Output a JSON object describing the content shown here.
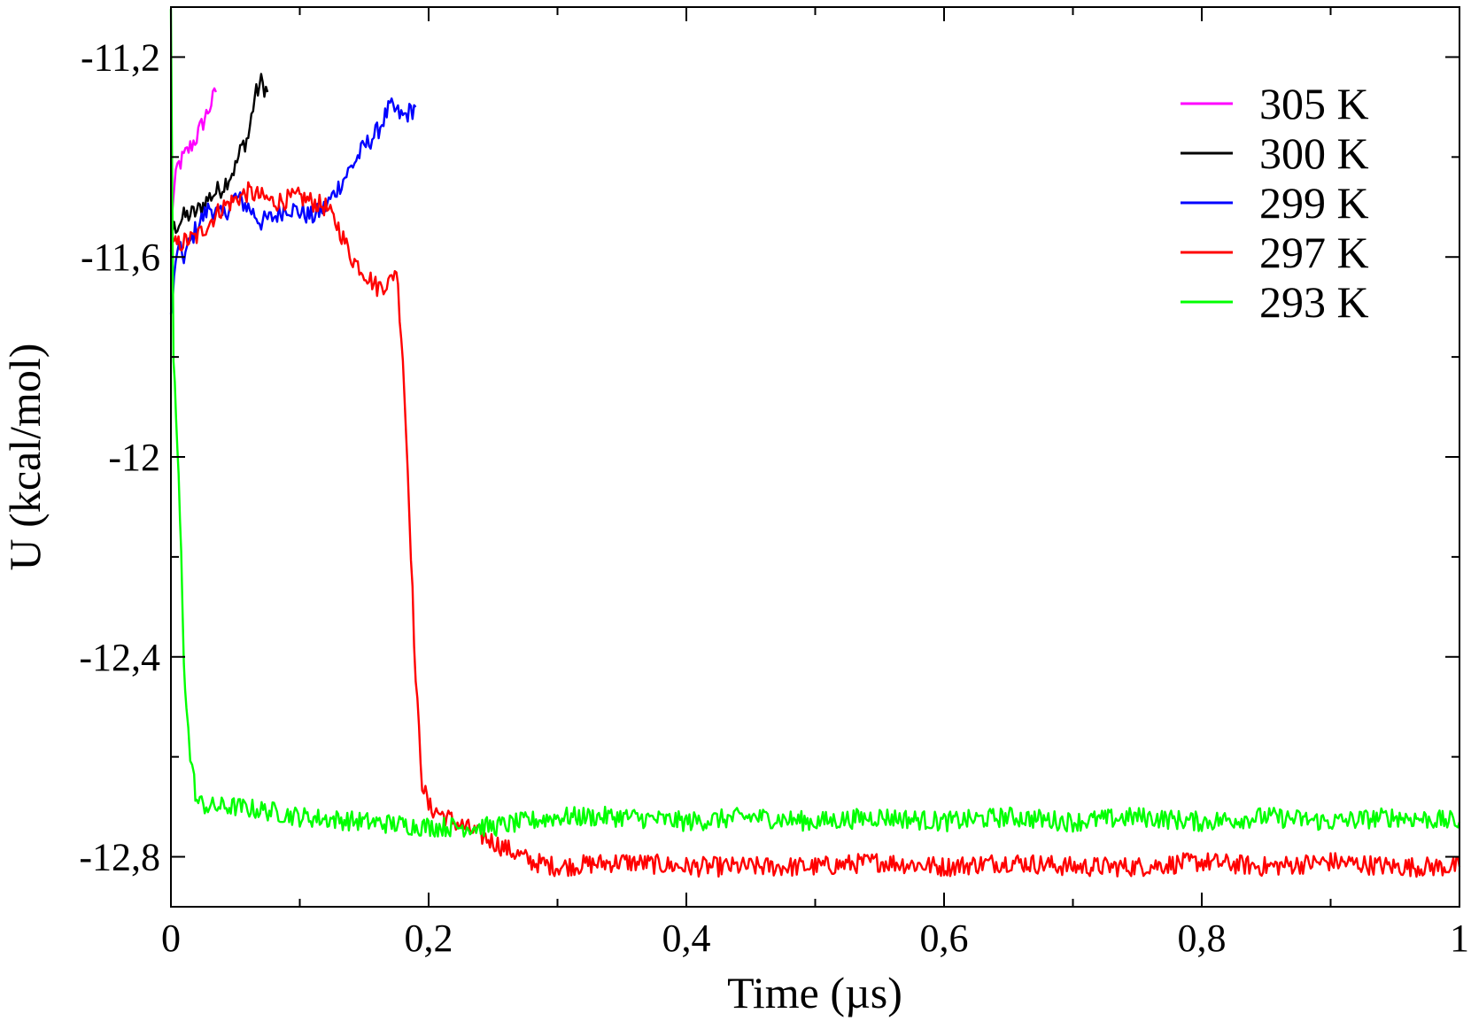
{
  "chart_data": {
    "type": "line",
    "title": "",
    "xlabel": "Time (µs)",
    "ylabel": "U (kcal/mol)",
    "xlim": [
      0,
      1
    ],
    "ylim": [
      -12.9,
      -11.1
    ],
    "xticks": [
      0,
      0.2,
      0.4,
      0.6,
      0.8,
      1
    ],
    "xtick_labels": [
      "0",
      "0,2",
      "0,4",
      "0,6",
      "0,8",
      "1"
    ],
    "yticks": [
      -11.2,
      -11.6,
      -12,
      -12.4,
      -12.8
    ],
    "ytick_labels": [
      "-11,2",
      "-11,6",
      "-12",
      "-12,4",
      "-12,8"
    ],
    "grid": false,
    "legend_position": "top-right",
    "series": [
      {
        "name": "305 K",
        "color": "#ff00ff",
        "x": [
          0.0,
          0.005,
          0.01,
          0.015,
          0.02,
          0.025,
          0.03,
          0.035
        ],
        "y": [
          -11.52,
          -11.42,
          -11.4,
          -11.38,
          -11.36,
          -11.33,
          -11.3,
          -11.27
        ]
      },
      {
        "name": "300 K",
        "color": "#000000",
        "x": [
          0.0,
          0.01,
          0.02,
          0.03,
          0.04,
          0.05,
          0.055,
          0.06,
          0.065,
          0.07,
          0.075
        ],
        "y": [
          -11.55,
          -11.52,
          -11.51,
          -11.48,
          -11.46,
          -11.42,
          -11.38,
          -11.36,
          -11.28,
          -11.25,
          -11.27
        ]
      },
      {
        "name": "299 K",
        "color": "#0000ff",
        "x": [
          0.0,
          0.005,
          0.01,
          0.02,
          0.03,
          0.04,
          0.05,
          0.06,
          0.07,
          0.08,
          0.09,
          0.1,
          0.11,
          0.12,
          0.13,
          0.14,
          0.15,
          0.16,
          0.17,
          0.18,
          0.19
        ],
        "y": [
          -11.72,
          -11.58,
          -11.6,
          -11.54,
          -11.5,
          -11.52,
          -11.48,
          -11.5,
          -11.53,
          -11.52,
          -11.5,
          -11.51,
          -11.52,
          -11.5,
          -11.46,
          -11.42,
          -11.38,
          -11.35,
          -11.3,
          -11.32,
          -11.3
        ]
      },
      {
        "name": "297 K",
        "color": "#ff0000",
        "x": [
          0.0,
          0.02,
          0.04,
          0.06,
          0.08,
          0.1,
          0.12,
          0.13,
          0.14,
          0.15,
          0.16,
          0.17,
          0.175,
          0.18,
          0.185,
          0.19,
          0.195,
          0.2,
          0.22,
          0.25,
          0.28,
          0.3,
          0.35,
          0.4,
          0.45,
          0.5,
          0.55,
          0.6,
          0.65,
          0.7,
          0.75,
          0.8,
          0.85,
          0.9,
          0.95,
          1.0
        ],
        "y": [
          -11.58,
          -11.56,
          -11.5,
          -11.47,
          -11.49,
          -11.48,
          -11.5,
          -11.54,
          -11.6,
          -11.63,
          -11.66,
          -11.65,
          -11.62,
          -11.8,
          -12.1,
          -12.45,
          -12.65,
          -12.7,
          -12.73,
          -12.77,
          -12.81,
          -12.82,
          -12.81,
          -12.82,
          -12.82,
          -12.82,
          -12.81,
          -12.82,
          -12.81,
          -12.82,
          -12.82,
          -12.81,
          -12.82,
          -12.81,
          -12.82,
          -12.82
        ]
      },
      {
        "name": "293 K",
        "color": "#00ff00",
        "x": [
          0.0,
          0.002,
          0.004,
          0.006,
          0.008,
          0.01,
          0.012,
          0.015,
          0.018,
          0.02,
          0.03,
          0.05,
          0.08,
          0.1,
          0.15,
          0.2,
          0.25,
          0.3,
          0.35,
          0.4,
          0.45,
          0.5,
          0.55,
          0.6,
          0.65,
          0.7,
          0.75,
          0.8,
          0.85,
          0.9,
          0.95,
          1.0
        ],
        "y": [
          -11.12,
          -11.8,
          -11.92,
          -12.05,
          -12.2,
          -12.4,
          -12.5,
          -12.6,
          -12.65,
          -12.69,
          -12.7,
          -12.7,
          -12.71,
          -12.72,
          -12.73,
          -12.74,
          -12.74,
          -12.72,
          -12.72,
          -12.73,
          -12.72,
          -12.73,
          -12.72,
          -12.73,
          -12.72,
          -12.73,
          -12.72,
          -12.73,
          -12.72,
          -12.73,
          -12.72,
          -12.73
        ]
      }
    ]
  }
}
